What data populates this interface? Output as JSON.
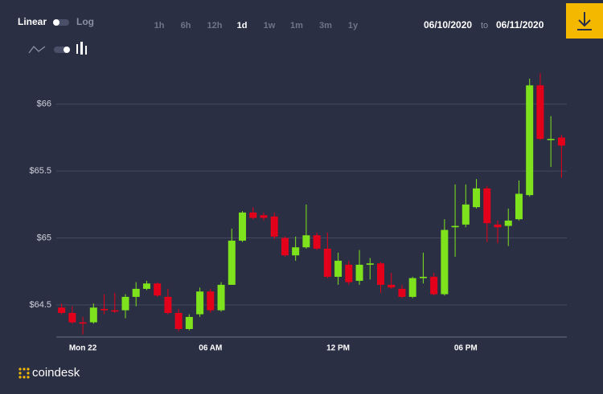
{
  "ui": {
    "scale_options": [
      "Linear",
      "Log"
    ],
    "ranges": [
      "1h",
      "6h",
      "12h",
      "1d",
      "1w",
      "1m",
      "3m",
      "1y"
    ],
    "active_range": "1d",
    "date_from": "06/10/2020",
    "date_sep": "to",
    "date_to": "06/11/2020",
    "brand": "coindesk"
  },
  "chart_data": {
    "type": "candlestick",
    "categories": [
      null,
      null,
      "Mon 22",
      null,
      null,
      null,
      null,
      null,
      null,
      null,
      null,
      null,
      null,
      null,
      "06 AM",
      null,
      null,
      null,
      null,
      null,
      null,
      null,
      null,
      null,
      null,
      null,
      "12 PM",
      null,
      null,
      null,
      null,
      null,
      null,
      null,
      null,
      null,
      null,
      null,
      "06 PM",
      null,
      null,
      null,
      null,
      null,
      null,
      null,
      null,
      null
    ],
    "open": [
      64.48,
      64.44,
      64.37,
      64.37,
      64.47,
      64.46,
      64.46,
      64.56,
      64.62,
      64.66,
      64.56,
      64.44,
      64.32,
      64.43,
      64.6,
      64.46,
      64.65,
      64.98,
      65.19,
      65.17,
      65.16,
      65.0,
      64.87,
      64.93,
      65.02,
      64.92,
      64.71,
      64.8,
      64.68,
      64.8,
      64.81,
      64.65,
      64.62,
      64.56,
      64.7,
      64.71,
      64.58,
      65.08,
      65.1,
      65.23,
      65.37,
      65.1,
      65.09,
      65.14,
      65.32,
      66.14,
      65.74,
      65.75
    ],
    "high": [
      64.51,
      64.49,
      64.41,
      64.51,
      64.58,
      64.59,
      64.58,
      64.67,
      64.68,
      64.67,
      64.62,
      64.47,
      64.43,
      64.63,
      64.62,
      64.67,
      65.07,
      65.2,
      65.23,
      65.19,
      65.19,
      65.01,
      65.01,
      65.25,
      65.04,
      65.04,
      64.89,
      64.83,
      64.91,
      64.85,
      64.82,
      64.74,
      64.65,
      64.71,
      64.89,
      64.74,
      65.14,
      65.4,
      65.4,
      65.44,
      65.39,
      65.13,
      65.22,
      65.43,
      66.19,
      66.23,
      65.91,
      65.77
    ],
    "low": [
      64.43,
      64.36,
      64.28,
      64.36,
      64.43,
      64.44,
      64.4,
      64.49,
      64.61,
      64.56,
      64.43,
      64.3,
      64.31,
      64.41,
      64.44,
      64.45,
      64.65,
      64.97,
      65.14,
      65.13,
      64.99,
      64.86,
      64.83,
      64.92,
      64.91,
      64.7,
      64.65,
      64.65,
      64.65,
      64.69,
      64.59,
      64.62,
      64.55,
      64.55,
      64.66,
      64.57,
      64.57,
      64.86,
      65.08,
      65.22,
      64.97,
      64.96,
      64.94,
      65.13,
      65.31,
      65.73,
      65.53,
      65.45
    ],
    "close": [
      64.44,
      64.37,
      64.36,
      64.48,
      64.46,
      64.45,
      64.56,
      64.62,
      64.66,
      64.57,
      64.44,
      64.32,
      64.41,
      64.6,
      64.46,
      64.65,
      64.98,
      65.19,
      65.15,
      65.15,
      65.01,
      64.87,
      64.93,
      65.02,
      64.92,
      64.71,
      64.83,
      64.67,
      64.8,
      64.81,
      64.65,
      64.63,
      64.56,
      64.7,
      64.71,
      64.58,
      65.06,
      65.09,
      65.25,
      65.37,
      65.11,
      65.08,
      65.13,
      65.33,
      66.14,
      65.74,
      65.74,
      65.69
    ],
    "up_color": "#7ee31c",
    "down_color": "#e3001b",
    "ylim": [
      64.26,
      66.25
    ],
    "yticks": [
      {
        "value": 64.5,
        "label": "$64.5"
      },
      {
        "value": 65,
        "label": "$65"
      },
      {
        "value": 65.5,
        "label": "$65.5"
      },
      {
        "value": 66,
        "label": "$66"
      }
    ],
    "grid": true
  }
}
